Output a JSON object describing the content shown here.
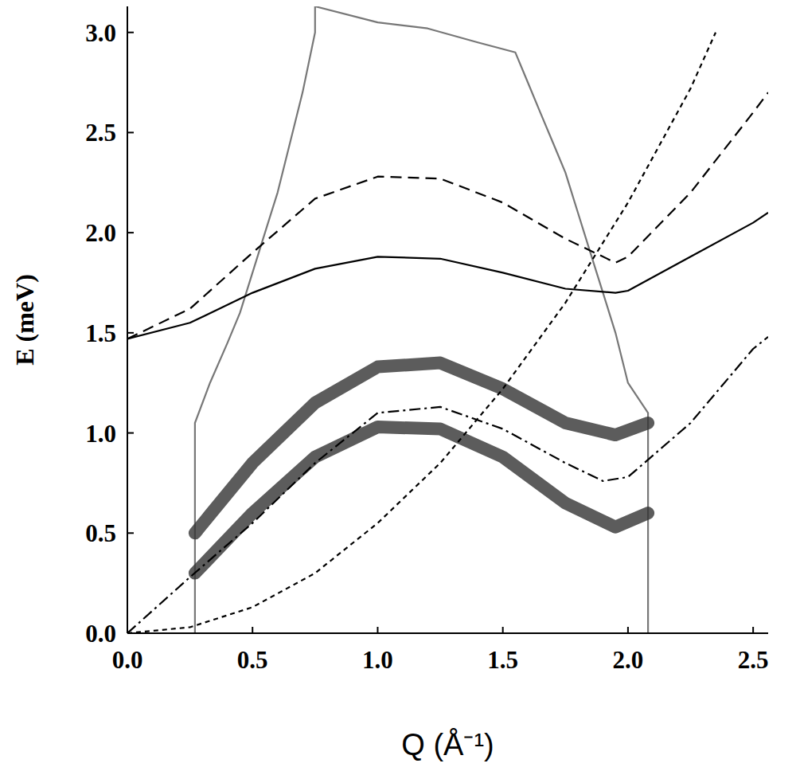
{
  "chart_data": {
    "type": "line",
    "x_label": "Q (Å⁻¹)",
    "y_label": "E (meV)",
    "xlim": [
      0,
      2.56
    ],
    "ylim": [
      0,
      3.13
    ],
    "xticks": [
      {
        "value": 0,
        "label": "0.0"
      },
      {
        "value": 0.5,
        "label": "0.5"
      },
      {
        "value": 1,
        "label": "1.0"
      },
      {
        "value": 1.5,
        "label": "1.5"
      },
      {
        "value": 2,
        "label": "2.0"
      },
      {
        "value": 2.5,
        "label": "2.5"
      }
    ],
    "yticks": [
      {
        "value": 0,
        "label": "0.0"
      },
      {
        "value": 0.5,
        "label": "0.5"
      },
      {
        "value": 1,
        "label": "1.0"
      },
      {
        "value": 1.5,
        "label": "1.5"
      },
      {
        "value": 2,
        "label": "2.0"
      },
      {
        "value": 2.5,
        "label": "2.5"
      },
      {
        "value": 3,
        "label": "3.0"
      }
    ],
    "grid": false,
    "series": [
      {
        "type": "line",
        "color": "#777777",
        "line_style": "solid",
        "x": [
          0.27,
          0.27,
          0.33,
          0.4,
          0.45,
          0.5,
          0.55,
          0.6,
          0.65,
          0.7,
          0.75,
          0.75,
          1.0,
          1.2,
          1.4,
          1.55,
          1.6,
          1.65,
          1.7,
          1.75,
          1.8,
          1.85,
          1.9,
          1.95,
          2.0,
          2.08,
          2.08
        ],
        "values": [
          0,
          1.05,
          1.25,
          1.45,
          1.6,
          1.8,
          2.0,
          2.2,
          2.45,
          2.7,
          3.0,
          3.13,
          3.05,
          3.02,
          2.95,
          2.9,
          2.75,
          2.6,
          2.45,
          2.3,
          2.1,
          1.9,
          1.7,
          1.5,
          1.25,
          1.1,
          0
        ]
      },
      {
        "type": "band",
        "color": "#333333",
        "line_style": "solid",
        "x": [
          0.27,
          0.5,
          0.75,
          1.0,
          1.25,
          1.5,
          1.75,
          1.95,
          2.08
        ],
        "values": [
          0.5,
          0.85,
          1.15,
          1.33,
          1.35,
          1.22,
          1.05,
          0.99,
          1.05
        ]
      },
      {
        "type": "band",
        "color": "#333333",
        "line_style": "solid",
        "x": [
          0.27,
          0.5,
          0.75,
          1.0,
          1.25,
          1.5,
          1.75,
          1.95,
          2.08
        ],
        "values": [
          0.3,
          0.6,
          0.88,
          1.03,
          1.02,
          0.88,
          0.65,
          0.53,
          0.6
        ]
      },
      {
        "type": "line",
        "color": "#000000",
        "line_style": "dotted",
        "x": [
          0,
          0.25,
          0.5,
          0.75,
          1.0,
          1.25,
          1.5,
          1.75,
          2.0,
          2.25,
          2.35
        ],
        "values": [
          0,
          0.03,
          0.13,
          0.3,
          0.55,
          0.85,
          1.22,
          1.65,
          2.15,
          2.72,
          3.0
        ]
      },
      {
        "type": "line",
        "color": "#000000",
        "line_style": "dashdot",
        "x": [
          0,
          0.25,
          0.5,
          0.75,
          1.0,
          1.25,
          1.5,
          1.75,
          1.9,
          2.0,
          2.25,
          2.5,
          2.56
        ],
        "values": [
          0,
          0.28,
          0.55,
          0.85,
          1.1,
          1.13,
          1.02,
          0.85,
          0.76,
          0.78,
          1.05,
          1.42,
          1.48
        ]
      },
      {
        "type": "line",
        "color": "#000000",
        "line_style": "solid",
        "x": [
          0,
          0.25,
          0.5,
          0.75,
          1.0,
          1.25,
          1.5,
          1.75,
          1.95,
          2.0,
          2.25,
          2.5,
          2.56
        ],
        "values": [
          1.47,
          1.55,
          1.7,
          1.82,
          1.88,
          1.87,
          1.8,
          1.72,
          1.7,
          1.71,
          1.88,
          2.05,
          2.1
        ]
      },
      {
        "type": "line",
        "color": "#000000",
        "line_style": "dashed",
        "x": [
          0,
          0.25,
          0.5,
          0.75,
          1.0,
          1.25,
          1.5,
          1.75,
          1.95,
          2.0,
          2.25,
          2.5,
          2.56
        ],
        "values": [
          1.47,
          1.62,
          1.9,
          2.17,
          2.28,
          2.27,
          2.15,
          1.97,
          1.85,
          1.88,
          2.2,
          2.6,
          2.7
        ]
      }
    ]
  }
}
